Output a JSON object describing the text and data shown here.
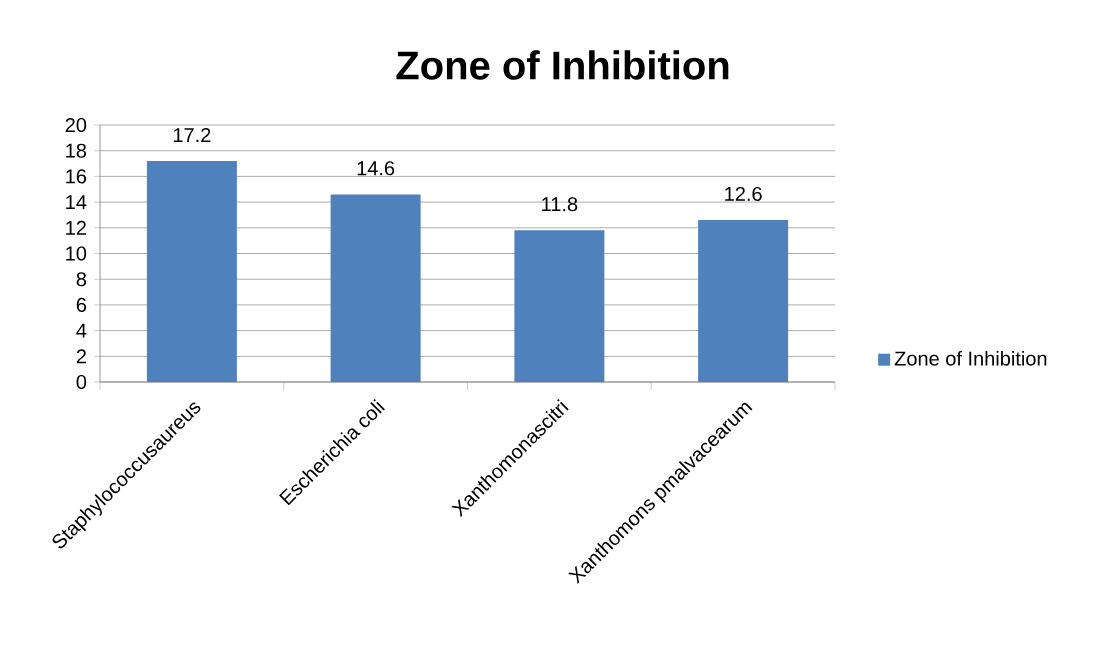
{
  "chart_data": {
    "type": "bar",
    "title": "Zone of Inhibition",
    "categories": [
      "Staphylococcusaureus",
      "Escherichia coli",
      "Xanthomonascitri",
      "Xanthomons pmalvacearum"
    ],
    "series": [
      {
        "name": "Zone of Inhibition",
        "color": "#4f81bd",
        "values": [
          17.2,
          14.6,
          11.8,
          12.6
        ]
      }
    ],
    "ylim": [
      0,
      20
    ],
    "yticks": [
      0,
      2,
      4,
      6,
      8,
      10,
      12,
      14,
      16,
      18,
      20
    ],
    "grid": "y",
    "legend": "right",
    "data_labels": true
  }
}
